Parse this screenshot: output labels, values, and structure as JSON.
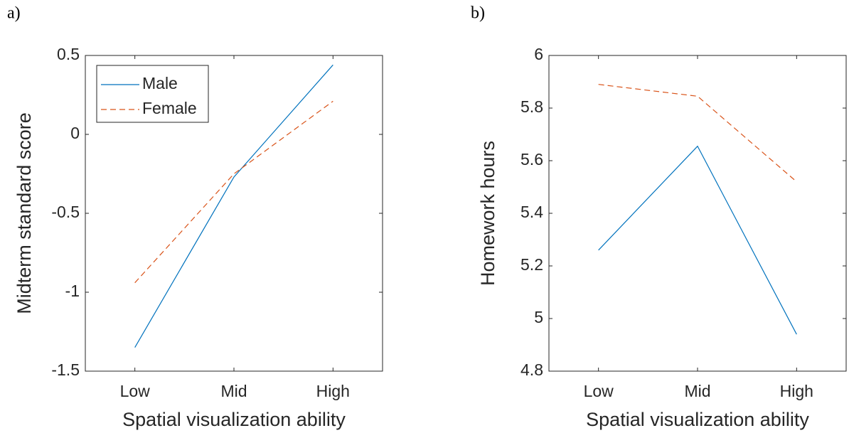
{
  "chart_data": [
    {
      "type": "line",
      "panel_label": "a)",
      "xlabel": "Spatial visualization ability",
      "ylabel": "Midterm standard score",
      "categories": [
        "Low",
        "Mid",
        "High"
      ],
      "series": [
        {
          "name": "Male",
          "color": "#0072BD",
          "dash": "solid",
          "values": [
            -1.35,
            -0.27,
            0.44
          ]
        },
        {
          "name": "Female",
          "color": "#D95319",
          "dash": "dashed",
          "values": [
            -0.94,
            -0.25,
            0.21
          ]
        }
      ],
      "ylim": [
        -1.5,
        0.5
      ],
      "yticks": [
        -1.5,
        -1,
        -0.5,
        0,
        0.5
      ],
      "legend": "upper left",
      "grid": false
    },
    {
      "type": "line",
      "panel_label": "b)",
      "xlabel": "Spatial visualization ability",
      "ylabel": "Homework hours",
      "categories": [
        "Low",
        "Mid",
        "High"
      ],
      "series": [
        {
          "name": "Male",
          "color": "#0072BD",
          "dash": "solid",
          "values": [
            5.26,
            5.655,
            4.94
          ]
        },
        {
          "name": "Female",
          "color": "#D95319",
          "dash": "dashed",
          "values": [
            5.89,
            5.845,
            5.52
          ]
        }
      ],
      "ylim": [
        4.8,
        6
      ],
      "yticks": [
        4.8,
        5,
        5.2,
        5.4,
        5.6,
        5.8,
        6
      ],
      "grid": false
    }
  ]
}
